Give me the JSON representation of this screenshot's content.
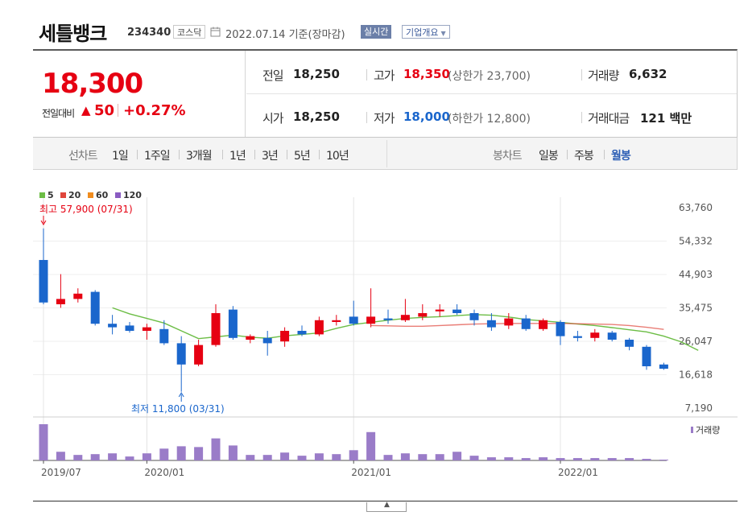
{
  "header": {
    "title": "세틀뱅크",
    "code": "234340",
    "market": "코스닥",
    "date": "2022.07.14",
    "date_note": "기준(장마감)",
    "realtime_label": "실시간",
    "company_label": "기업개요"
  },
  "quote": {
    "price": "18,300",
    "change_label": "전일대비",
    "change_arrow": "▲",
    "change_value": "50",
    "change_pct": "+0.27%",
    "prev_close_label": "전일",
    "prev_close": "18,250",
    "open_label": "시가",
    "open": "18,250",
    "high_label": "고가",
    "high": "18,350",
    "upper_limit": "(상한가 23,700)",
    "low_label": "저가",
    "low": "18,000",
    "lower_limit": "(하한가 12,800)",
    "volume_label": "거래량",
    "volume": "6,632",
    "amount_label": "거래대금",
    "amount": "121 백만"
  },
  "periods": {
    "line_label": "선차트",
    "line_items": [
      "1일",
      "1주일",
      "3개월",
      "1년",
      "3년",
      "5년",
      "10년"
    ],
    "candle_label": "봉차트",
    "candle_items": [
      "일봉",
      "주봉",
      "월봉"
    ],
    "active": "월봉"
  },
  "colors": {
    "up": "#e60012",
    "down": "#1a66cc",
    "ma5": "#6cbd45",
    "ma20": "#e0463c",
    "ma60": "#f08c1e",
    "ma120": "#8a5cc2",
    "volume_bar": "#9a7cc8"
  },
  "chart_data": {
    "type": "candlestick",
    "legend": [
      {
        "name": "5",
        "color": "#6cbd45"
      },
      {
        "name": "20",
        "color": "#e0463c"
      },
      {
        "name": "60",
        "color": "#f08c1e"
      },
      {
        "name": "120",
        "color": "#8a5cc2"
      }
    ],
    "volume_legend": "거래량",
    "y_ticks": [
      "63,760",
      "54,332",
      "44,903",
      "35,475",
      "26,047",
      "16,618",
      "7,190"
    ],
    "y_range": [
      7190,
      63760
    ],
    "x_ticks": [
      {
        "label": "2019/07",
        "index": 0
      },
      {
        "label": "2020/01",
        "index": 6
      },
      {
        "label": "2021/01",
        "index": 18
      },
      {
        "label": "2022/01",
        "index": 30
      }
    ],
    "annotations": {
      "high": {
        "label": "최고 57,900 (07/31)",
        "index": 0,
        "value": 57900
      },
      "low": {
        "label": "최저 11,800 (03/31)",
        "index": 8,
        "value": 11800
      }
    },
    "candles": [
      {
        "date": "2019/07",
        "o": 49000,
        "h": 57900,
        "l": 36500,
        "c": 37000
      },
      {
        "date": "2019/08",
        "o": 36500,
        "h": 45000,
        "l": 35500,
        "c": 38000
      },
      {
        "date": "2019/09",
        "o": 38000,
        "h": 41000,
        "l": 37000,
        "c": 39500
      },
      {
        "date": "2019/10",
        "o": 40000,
        "h": 40500,
        "l": 30500,
        "c": 31000
      },
      {
        "date": "2019/11",
        "o": 31000,
        "h": 33500,
        "l": 28000,
        "c": 30000
      },
      {
        "date": "2019/12",
        "o": 30500,
        "h": 31500,
        "l": 28500,
        "c": 29000
      },
      {
        "date": "2020/01",
        "o": 29000,
        "h": 31000,
        "l": 26500,
        "c": 30000
      },
      {
        "date": "2020/02",
        "o": 29500,
        "h": 32000,
        "l": 25000,
        "c": 25500
      },
      {
        "date": "2020/03",
        "o": 25500,
        "h": 27500,
        "l": 11800,
        "c": 19500
      },
      {
        "date": "2020/04",
        "o": 19500,
        "h": 26500,
        "l": 19000,
        "c": 25000
      },
      {
        "date": "2020/05",
        "o": 25000,
        "h": 36500,
        "l": 24500,
        "c": 34000
      },
      {
        "date": "2020/06",
        "o": 35000,
        "h": 36000,
        "l": 26500,
        "c": 27000
      },
      {
        "date": "2020/07",
        "o": 26500,
        "h": 28000,
        "l": 25500,
        "c": 27500
      },
      {
        "date": "2020/08",
        "o": 27000,
        "h": 29000,
        "l": 22000,
        "c": 25500
      },
      {
        "date": "2020/09",
        "o": 26000,
        "h": 30000,
        "l": 24500,
        "c": 29000
      },
      {
        "date": "2020/10",
        "o": 29000,
        "h": 30500,
        "l": 27500,
        "c": 28000
      },
      {
        "date": "2020/11",
        "o": 28000,
        "h": 33000,
        "l": 27500,
        "c": 32000
      },
      {
        "date": "2020/12",
        "o": 31500,
        "h": 33500,
        "l": 30500,
        "c": 32000
      },
      {
        "date": "2021/01",
        "o": 33000,
        "h": 37500,
        "l": 30500,
        "c": 31000
      },
      {
        "date": "2021/02",
        "o": 31000,
        "h": 41000,
        "l": 30000,
        "c": 33000
      },
      {
        "date": "2021/03",
        "o": 32500,
        "h": 35000,
        "l": 31000,
        "c": 32000
      },
      {
        "date": "2021/04",
        "o": 32000,
        "h": 38000,
        "l": 31500,
        "c": 33500
      },
      {
        "date": "2021/05",
        "o": 33000,
        "h": 36500,
        "l": 32000,
        "c": 34000
      },
      {
        "date": "2021/06",
        "o": 34500,
        "h": 36500,
        "l": 33000,
        "c": 35000
      },
      {
        "date": "2021/07",
        "o": 35000,
        "h": 36500,
        "l": 33500,
        "c": 34000
      },
      {
        "date": "2021/08",
        "o": 34000,
        "h": 35000,
        "l": 30500,
        "c": 32000
      },
      {
        "date": "2021/09",
        "o": 32000,
        "h": 34000,
        "l": 29000,
        "c": 30000
      },
      {
        "date": "2021/10",
        "o": 30500,
        "h": 34000,
        "l": 29500,
        "c": 32500
      },
      {
        "date": "2021/11",
        "o": 32500,
        "h": 33500,
        "l": 29000,
        "c": 29500
      },
      {
        "date": "2021/12",
        "o": 29500,
        "h": 32500,
        "l": 29000,
        "c": 32000
      },
      {
        "date": "2022/01",
        "o": 31500,
        "h": 32000,
        "l": 25000,
        "c": 27500
      },
      {
        "date": "2022/02",
        "o": 27500,
        "h": 29000,
        "l": 26000,
        "c": 27000
      },
      {
        "date": "2022/03",
        "o": 27000,
        "h": 29500,
        "l": 26000,
        "c": 28500
      },
      {
        "date": "2022/04",
        "o": 28500,
        "h": 29000,
        "l": 26000,
        "c": 26500
      },
      {
        "date": "2022/05",
        "o": 26500,
        "h": 27000,
        "l": 23500,
        "c": 24500
      },
      {
        "date": "2022/06",
        "o": 24500,
        "h": 25000,
        "l": 18000,
        "c": 19000
      },
      {
        "date": "2022/07",
        "o": 19500,
        "h": 20000,
        "l": 18000,
        "c": 18300
      }
    ],
    "volume": [
      46,
      11,
      7,
      8,
      9,
      5,
      9,
      15,
      18,
      17,
      28,
      19,
      7,
      7,
      10,
      6,
      9,
      8,
      13,
      36,
      7,
      9,
      8,
      8,
      11,
      6,
      4,
      4,
      3,
      4,
      3,
      3,
      3,
      3,
      3,
      2,
      1
    ],
    "ma": [
      {
        "name": "5",
        "from": 4,
        "values": [
          35500,
          33800,
          32500,
          31200,
          29000,
          26800,
          27300,
          27800,
          27200,
          26900,
          27600,
          28000,
          28400,
          29700,
          30800,
          31400,
          32000,
          32500,
          32800,
          33000,
          33300,
          33600,
          33400,
          32900,
          32200,
          31800,
          31400,
          30900,
          30500,
          29900,
          29300,
          28700,
          27500,
          25900,
          23500
        ]
      },
      {
        "name": "20",
        "from": 19,
        "values": [
          30500,
          30400,
          30300,
          30300,
          30500,
          30700,
          30900,
          31000,
          31100,
          31100,
          31100,
          31100,
          31000,
          30900,
          30800,
          30500,
          30000,
          29400
        ]
      }
    ]
  }
}
